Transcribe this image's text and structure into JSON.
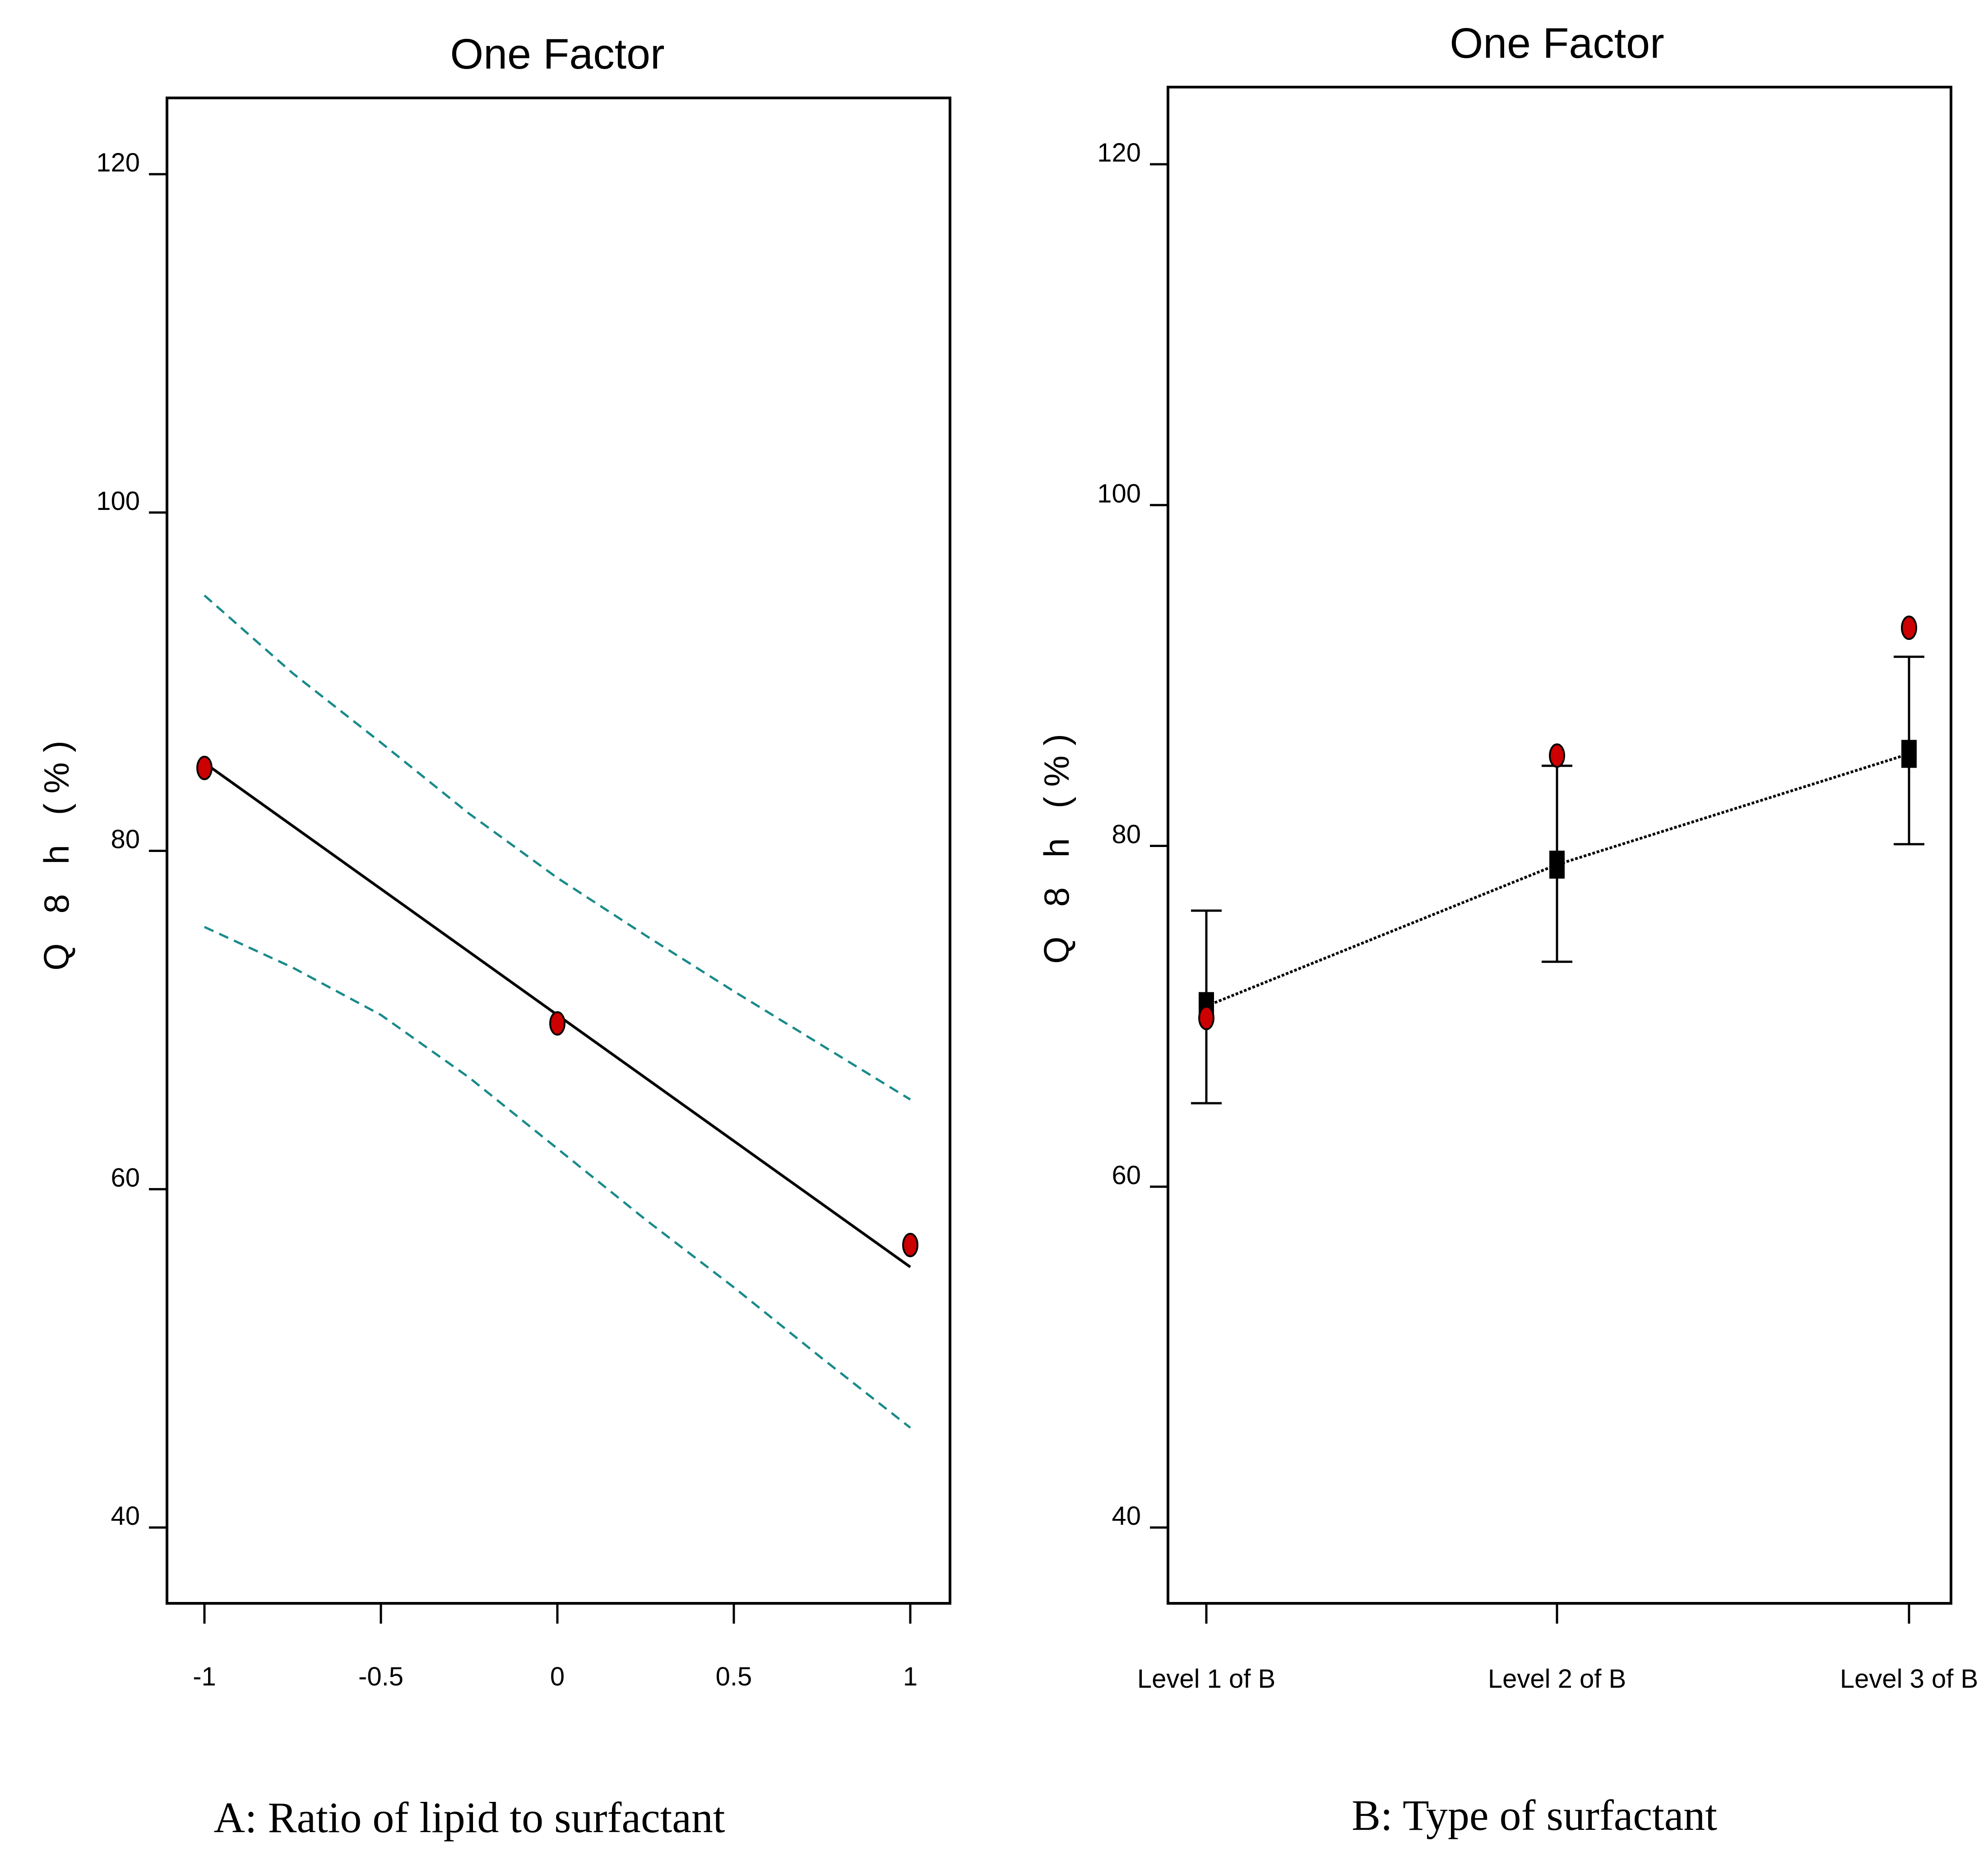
{
  "colors": {
    "axis": "#000000",
    "fit_line": "#000000",
    "confidence_band": "#1a8a8a",
    "design_point": "#cc0000",
    "mean_marker": "#000000"
  },
  "chart_data": [
    {
      "type": "line",
      "title": "One Factor",
      "xlabel": "A: Ratio of lipid to surfactant",
      "ylabel": "Q 8 h (%)",
      "xlim": [
        -1.1,
        1.1
      ],
      "ylim": [
        35.6,
        124.5
      ],
      "xticks": [
        -1,
        -0.5,
        0,
        0.5,
        1
      ],
      "xtick_labels": [
        "-1",
        "-0.5",
        "0",
        "0.5",
        "1"
      ],
      "yticks": [
        40,
        60,
        80,
        100,
        120
      ],
      "ytick_labels": [
        "40",
        "60",
        "80",
        "100",
        "120"
      ],
      "series": [
        {
          "name": "prediction",
          "style": "solid",
          "x": [
            -1,
            0,
            1
          ],
          "y": [
            85.2,
            70.3,
            55.4
          ]
        },
        {
          "name": "upper 95% CI",
          "style": "dashed",
          "x": [
            -1,
            -0.75,
            -0.5,
            -0.25,
            0,
            0.25,
            0.5,
            0.75,
            1
          ],
          "y": [
            95.1,
            90.5,
            86.4,
            82.2,
            78.4,
            75.0,
            71.7,
            68.5,
            65.3
          ]
        },
        {
          "name": "lower 95% CI",
          "style": "dashed",
          "x": [
            -1,
            -0.75,
            -0.5,
            -0.25,
            0,
            0.25,
            0.5,
            0.75,
            1
          ],
          "y": [
            75.5,
            73.1,
            70.3,
            66.6,
            62.4,
            58.2,
            54.2,
            50.0,
            45.9
          ]
        }
      ],
      "points": {
        "name": "design points",
        "x": [
          -1,
          0,
          1
        ],
        "y": [
          84.9,
          69.8,
          56.7
        ]
      }
    },
    {
      "type": "line",
      "title": "One Factor",
      "xlabel": "B: Type of surfactant",
      "ylabel": "Q 8 h (%)",
      "ylim": [
        35.6,
        124.5
      ],
      "categories": [
        "Level 1 of B",
        "Level 2 of B",
        "Level 3 of B"
      ],
      "yticks": [
        40,
        60,
        80,
        100,
        120
      ],
      "ytick_labels": [
        "40",
        "60",
        "80",
        "100",
        "120"
      ],
      "series": [
        {
          "name": "predicted mean",
          "style": "dotted",
          "values": [
            70.6,
            78.9,
            85.4
          ]
        }
      ],
      "error_bars": {
        "lower": [
          64.9,
          73.2,
          80.1
        ],
        "upper": [
          76.2,
          84.7,
          91.1
        ]
      },
      "points": {
        "name": "design points",
        "values": [
          69.9,
          85.3,
          92.8
        ]
      }
    }
  ]
}
